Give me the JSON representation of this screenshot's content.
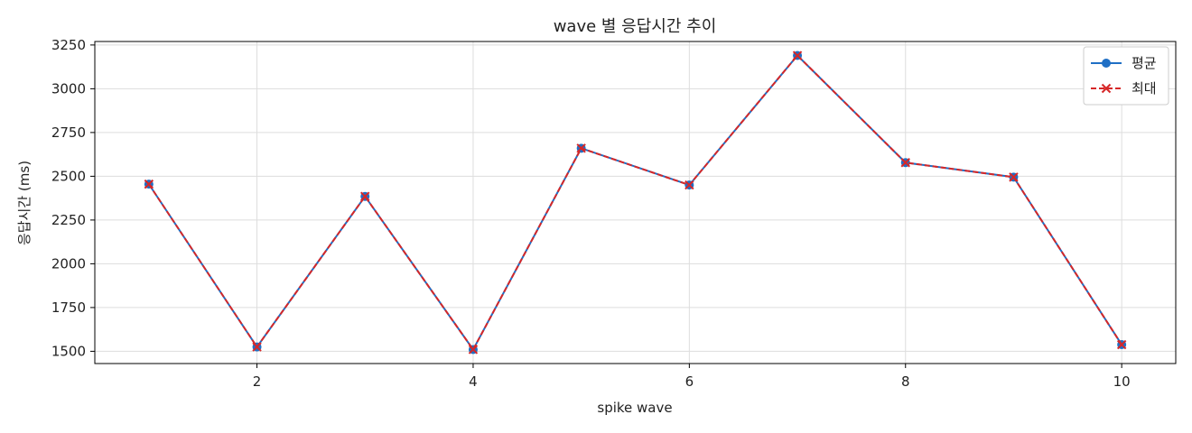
{
  "chart_data": {
    "type": "line",
    "title": "wave 별 응답시간 추이",
    "xlabel": "spike wave",
    "ylabel": "응답시간 (ms)",
    "x": [
      1,
      2,
      3,
      4,
      5,
      6,
      7,
      8,
      9,
      10
    ],
    "xlim": [
      0.5,
      10.5
    ],
    "ylim": [
      1430,
      3270
    ],
    "xticks": [
      2,
      4,
      6,
      8,
      10
    ],
    "yticks": [
      1500,
      1750,
      2000,
      2250,
      2500,
      2750,
      3000,
      3250
    ],
    "grid": true,
    "legend_position": "top-right",
    "series": [
      {
        "name": "평균",
        "values": [
          2455,
          1525,
          2385,
          1510,
          2660,
          2450,
          3190,
          2578,
          2495,
          1538
        ],
        "color": "#1f6fc5",
        "marker": "circle",
        "linestyle": "solid"
      },
      {
        "name": "최대",
        "values": [
          2455,
          1525,
          2385,
          1510,
          2660,
          2450,
          3190,
          2578,
          2495,
          1538
        ],
        "color": "#d62728",
        "marker": "x",
        "linestyle": "dashed"
      }
    ]
  }
}
